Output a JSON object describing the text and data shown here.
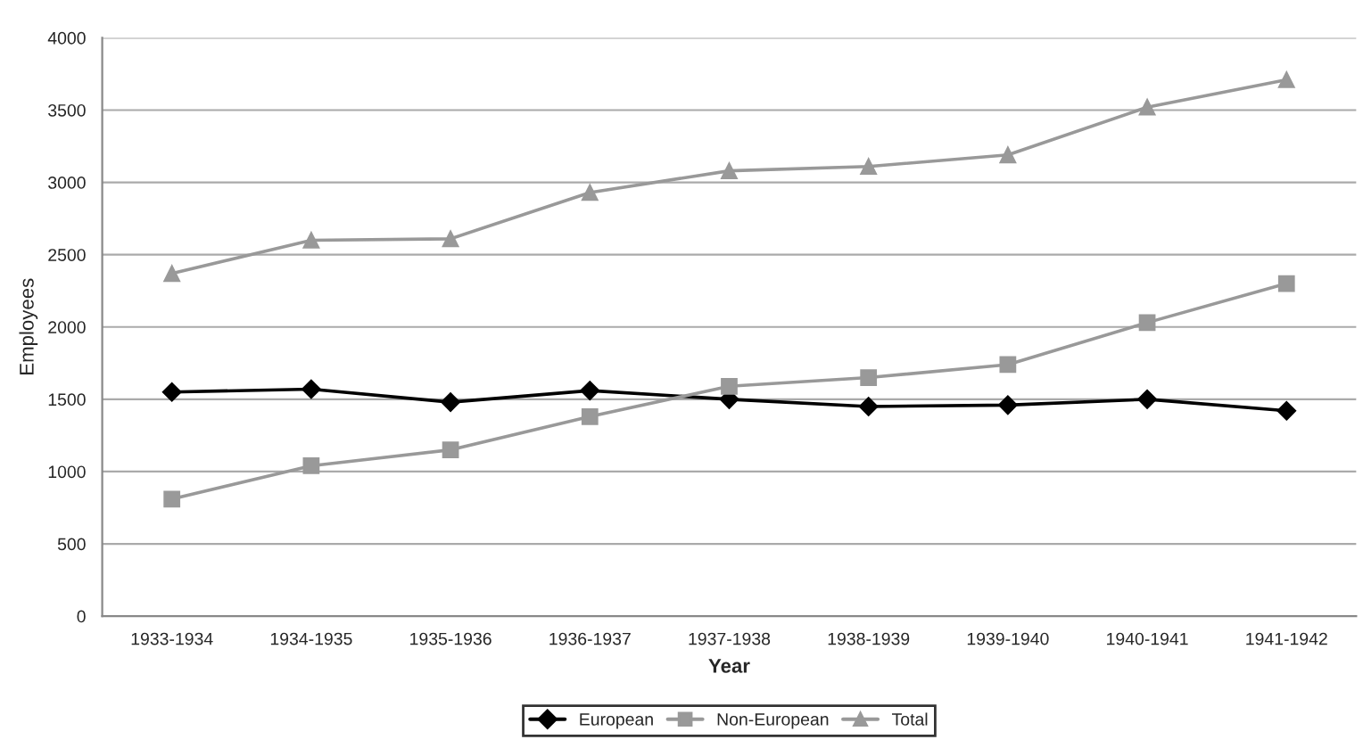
{
  "chart_data": {
    "type": "line",
    "xlabel": "Year",
    "ylabel": "Employees",
    "categories": [
      "1933-1934",
      "1934-1935",
      "1935-1936",
      "1936-1937",
      "1937-1938",
      "1938-1939",
      "1939-1940",
      "1940-1941",
      "1941-1942"
    ],
    "series": [
      {
        "name": "European",
        "color": "#000000",
        "marker": "diamond",
        "values": [
          1550,
          1570,
          1480,
          1560,
          1500,
          1450,
          1460,
          1500,
          1420
        ]
      },
      {
        "name": "Non-European",
        "color": "#999999",
        "marker": "square",
        "values": [
          810,
          1040,
          1150,
          1380,
          1590,
          1650,
          1740,
          2030,
          2300
        ]
      },
      {
        "name": "Total",
        "color": "#999999",
        "marker": "triangle",
        "values": [
          2370,
          2600,
          2610,
          2930,
          3080,
          3110,
          3190,
          3520,
          3710
        ]
      }
    ],
    "ylim": [
      0,
      4000
    ],
    "yticks": [
      0,
      500,
      1000,
      1500,
      2000,
      2500,
      3000,
      3500,
      4000
    ],
    "grid": "y",
    "legend": "bottom",
    "line_style": "solid"
  }
}
